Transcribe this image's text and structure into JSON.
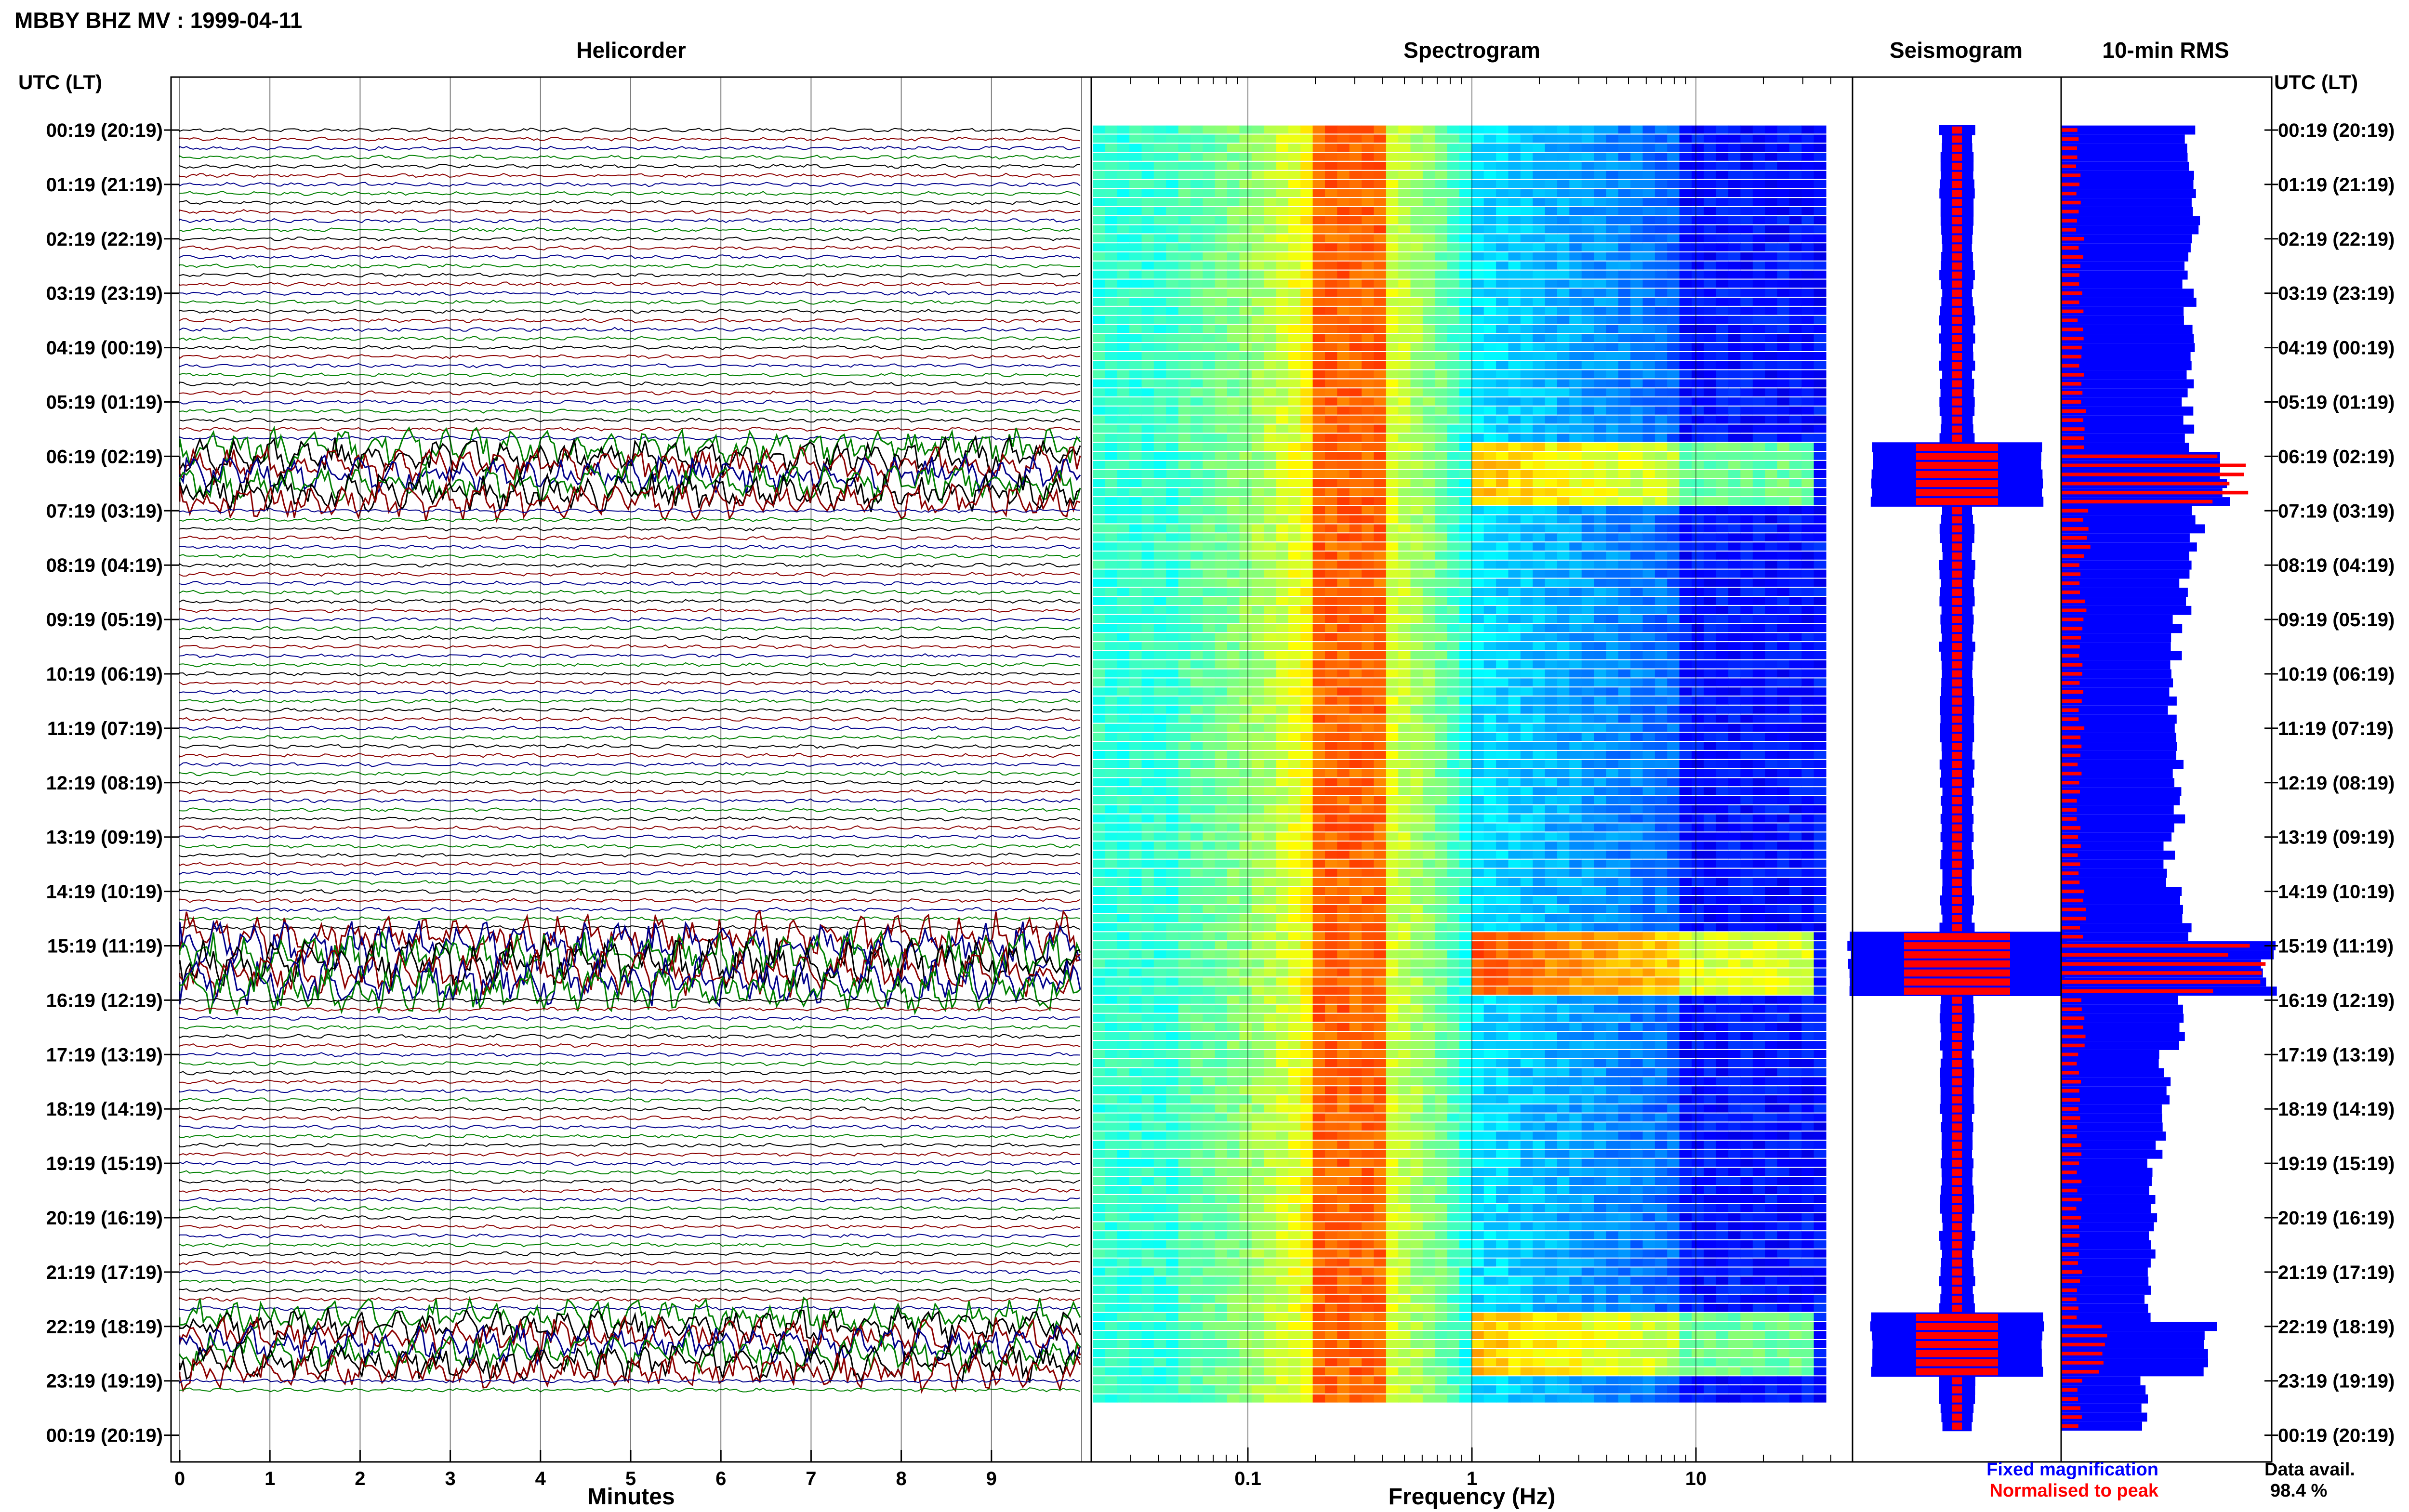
{
  "title": "MBBY BHZ MV : 1999-04-11",
  "panels": {
    "helicorder": "Helicorder",
    "spectrogram": "Spectrogram",
    "seismogram": "Seismogram",
    "rms": "10-min RMS"
  },
  "left_axis_title": "UTC (LT)",
  "right_axis_title": "UTC (LT)",
  "time_labels": [
    "00:19 (20:19)",
    "01:19 (21:19)",
    "02:19 (22:19)",
    "03:19 (23:19)",
    "04:19 (00:19)",
    "05:19 (01:19)",
    "06:19 (02:19)",
    "07:19 (03:19)",
    "08:19 (04:19)",
    "09:19 (05:19)",
    "10:19 (06:19)",
    "11:19 (07:19)",
    "12:19 (08:19)",
    "13:19 (09:19)",
    "14:19 (10:19)",
    "15:19 (11:19)",
    "16:19 (12:19)",
    "17:19 (13:19)",
    "18:19 (14:19)",
    "19:19 (15:19)",
    "20:19 (16:19)",
    "21:19 (17:19)",
    "22:19 (18:19)",
    "23:19 (19:19)",
    "00:19 (20:19)"
  ],
  "minutes_axis": {
    "label": "Minutes",
    "ticks": [
      "0",
      "1",
      "2",
      "3",
      "4",
      "5",
      "6",
      "7",
      "8",
      "9"
    ]
  },
  "frequency_axis": {
    "label": "Frequency (Hz)",
    "ticks": [
      "0.1",
      "1",
      "10"
    ]
  },
  "legend": {
    "fixed": "Fixed magnification",
    "normalised": "Normalised to peak",
    "fixed_color": "#0000ff",
    "normalised_color": "#ff0000"
  },
  "data_avail": {
    "label": "Data avail.",
    "value": "98.4 %"
  },
  "colors": {
    "trace_cycle": [
      "#000000",
      "#8b0000",
      "#00008b",
      "#008000"
    ],
    "fixed": "#0000ff",
    "normalised": "#ff0000"
  },
  "chart_data": {
    "type": "heatmap",
    "date": "1999-04-11",
    "station": "MBBY BHZ MV",
    "helicorder": {
      "x_unit": "minutes",
      "xlim": [
        0,
        10
      ],
      "lines_per_hour": 6,
      "events": [
        {
          "utc": "06:19",
          "strength": "large"
        },
        {
          "utc": "15:19",
          "strength": "very large"
        },
        {
          "utc": "22:19",
          "strength": "large"
        }
      ]
    },
    "spectrogram": {
      "x_scale": "log",
      "xlim": [
        0.02,
        50
      ],
      "dominant_band_hz": [
        0.2,
        0.4
      ]
    },
    "seismogram_events_utc": [
      "06:19",
      "15:19",
      "22:19"
    ],
    "rms_10min": {
      "hourly_fixed": [
        0.62,
        0.64,
        0.61,
        0.63,
        0.62,
        0.61,
        0.8,
        0.66,
        0.6,
        0.56,
        0.55,
        0.56,
        0.58,
        0.52,
        0.6,
        1.0,
        0.58,
        0.5,
        0.48,
        0.44,
        0.44,
        0.42,
        0.72,
        0.4
      ],
      "hourly_normalised": [
        0.1,
        0.1,
        0.11,
        0.11,
        0.11,
        0.12,
        0.9,
        0.14,
        0.12,
        0.11,
        0.11,
        0.11,
        0.1,
        0.1,
        0.12,
        1.0,
        0.12,
        0.1,
        0.1,
        0.1,
        0.1,
        0.1,
        0.25,
        0.1
      ]
    }
  }
}
